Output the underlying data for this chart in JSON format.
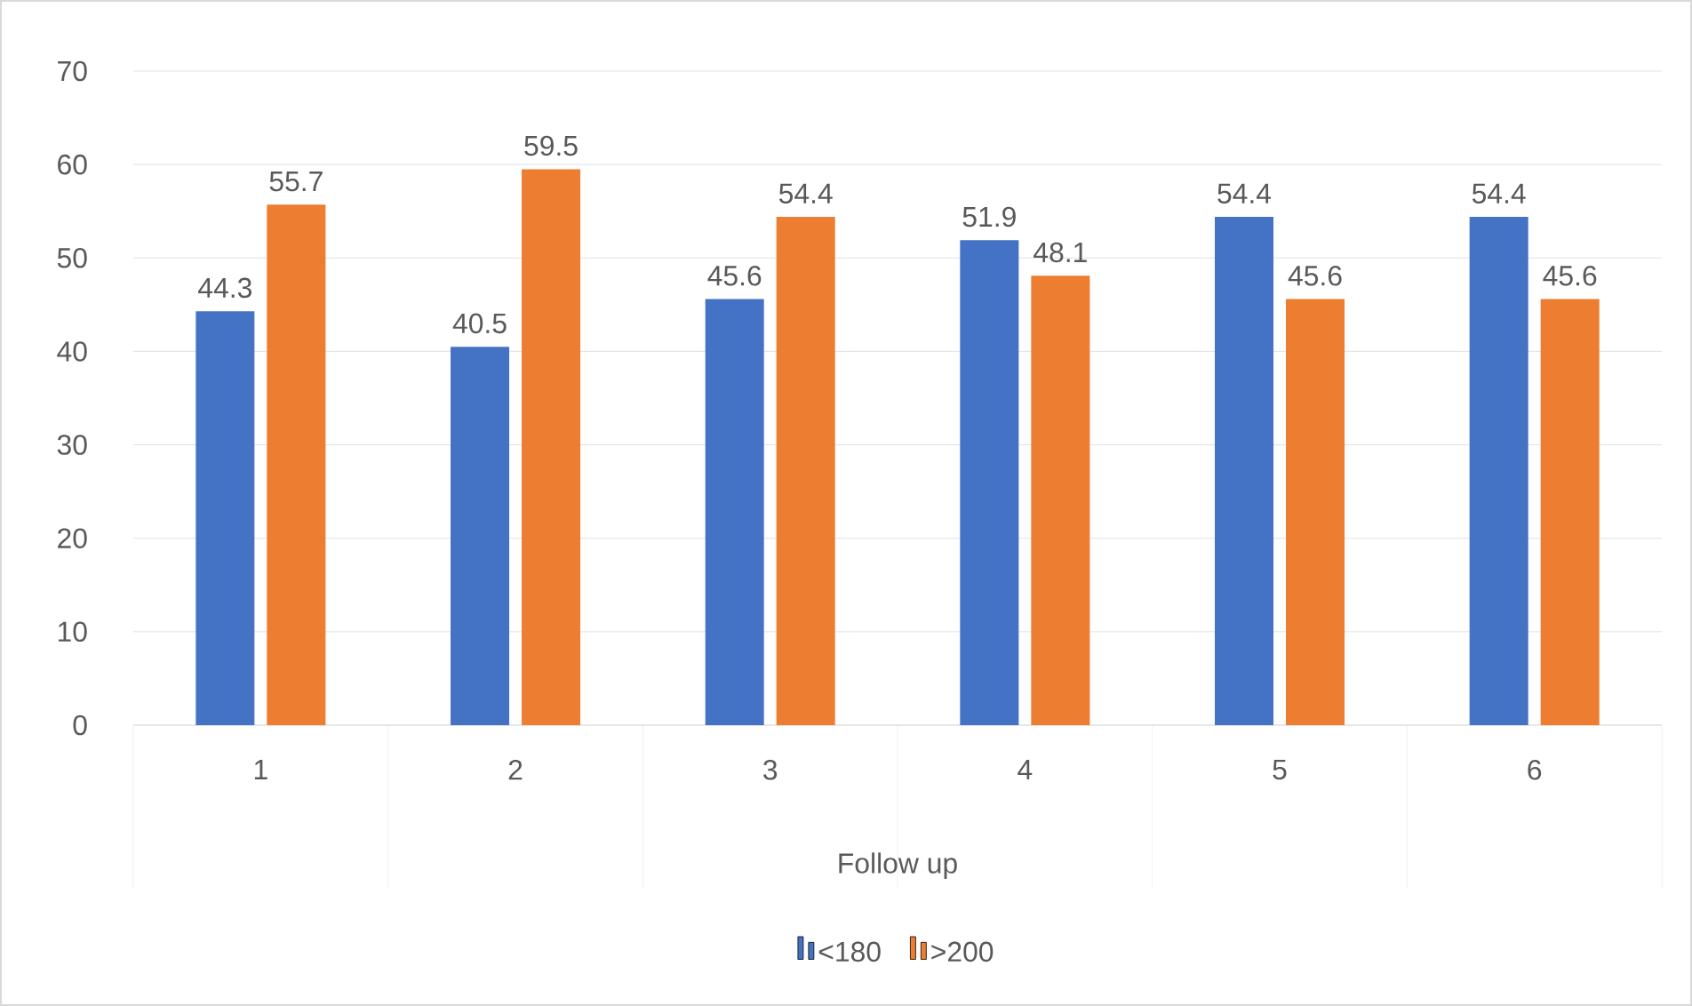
{
  "chart_data": {
    "type": "bar",
    "categories": [
      "1",
      "2",
      "3",
      "4",
      "5",
      "6"
    ],
    "xlabel": "Follow up",
    "series": [
      {
        "name": "<180",
        "color": "#4472c4",
        "values": [
          44.3,
          40.5,
          45.6,
          51.9,
          54.4,
          54.4
        ]
      },
      {
        "name": ">200",
        "color": "#ed7d31",
        "values": [
          55.7,
          59.5,
          54.4,
          48.1,
          45.6,
          45.6
        ]
      }
    ],
    "ylim": [
      0,
      70
    ],
    "yticks": [
      0,
      10,
      20,
      30,
      40,
      50,
      60,
      70
    ],
    "grid": "y",
    "legend": "bottom",
    "data_labels": true
  }
}
